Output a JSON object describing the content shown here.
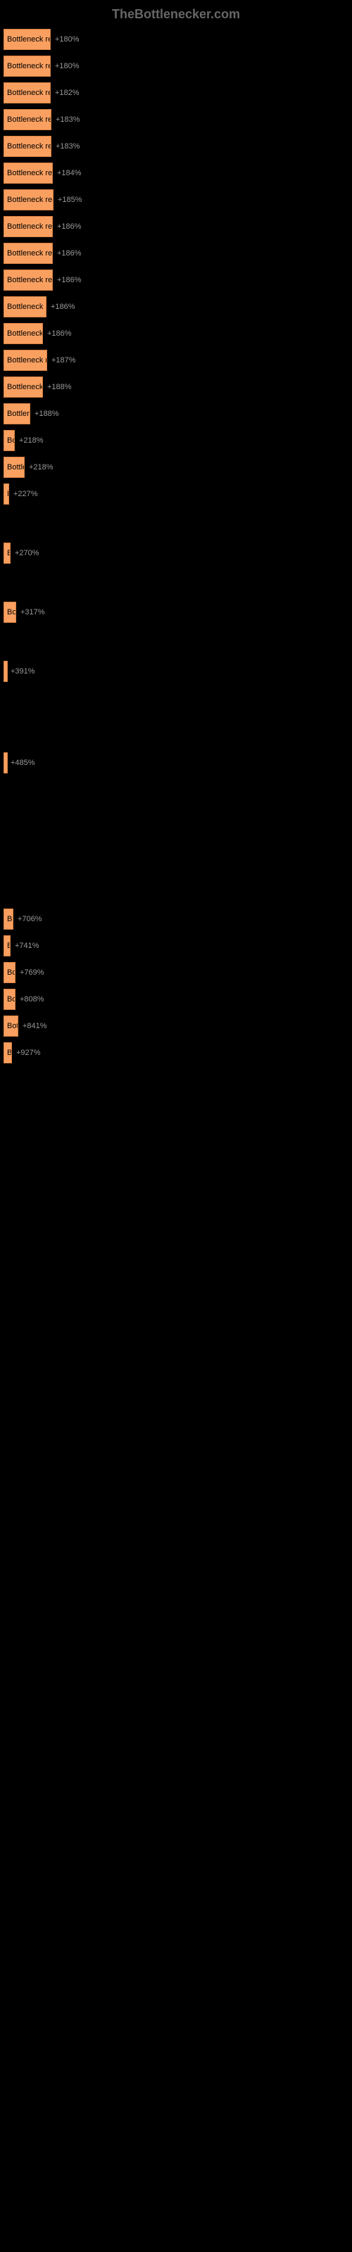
{
  "header": {
    "title": "TheBottlenecker.com"
  },
  "chart": {
    "type": "bar",
    "bar_color": "#f9a061",
    "bar_border_color": "#d88040",
    "background_color": "#000000",
    "text_color": "#000000",
    "percent_color": "#999999",
    "max_width": 490,
    "items": [
      {
        "label": "Bottleneck result",
        "width": 67,
        "percent": "+180%"
      },
      {
        "label": "Bottleneck result",
        "width": 67,
        "percent": "+180%"
      },
      {
        "label": "Bottleneck result",
        "width": 67,
        "percent": "+182%"
      },
      {
        "label": "Bottleneck result",
        "width": 68,
        "percent": "+183%"
      },
      {
        "label": "Bottleneck result",
        "width": 68,
        "percent": "+183%"
      },
      {
        "label": "Bottleneck result",
        "width": 70,
        "percent": "+184%"
      },
      {
        "label": "Bottleneck result",
        "width": 71,
        "percent": "+185%"
      },
      {
        "label": "Bottleneck result",
        "width": 70,
        "percent": "+186%"
      },
      {
        "label": "Bottleneck result",
        "width": 70,
        "percent": "+186%"
      },
      {
        "label": "Bottleneck result",
        "width": 70,
        "percent": "+186%"
      },
      {
        "label": "Bottleneck re",
        "width": 61,
        "percent": "+186%"
      },
      {
        "label": "Bottleneck r",
        "width": 56,
        "percent": "+186%"
      },
      {
        "label": "Bottleneck re",
        "width": 62,
        "percent": "+187%"
      },
      {
        "label": "Bottleneck r",
        "width": 56,
        "percent": "+188%"
      },
      {
        "label": "Bottlene",
        "width": 38,
        "percent": "+188%"
      },
      {
        "label": "Bo",
        "width": 16,
        "percent": "+218%"
      },
      {
        "label": "Bottle",
        "width": 30,
        "percent": "+218%"
      },
      {
        "label": "H",
        "width": 8,
        "percent": "+227%"
      },
      {
        "label": "",
        "width": 0,
        "percent": ""
      },
      {
        "label": "B",
        "width": 10,
        "percent": "+270%"
      },
      {
        "label": "",
        "width": 0,
        "percent": ""
      },
      {
        "label": "Bo",
        "width": 18,
        "percent": "+317%"
      },
      {
        "label": "",
        "width": 0,
        "percent": ""
      },
      {
        "label": "B",
        "width": 4,
        "percent": "+391%"
      },
      {
        "label": "",
        "width": 0,
        "percent": ""
      },
      {
        "label": "",
        "width": 0,
        "percent": ""
      },
      {
        "label": "B",
        "width": 4,
        "percent": "+485%"
      },
      {
        "label": "",
        "width": 0,
        "percent": ""
      },
      {
        "label": "",
        "width": 0,
        "percent": ""
      },
      {
        "label": "",
        "width": 0,
        "percent": ""
      },
      {
        "label": "",
        "width": 0,
        "percent": ""
      },
      {
        "label": "B",
        "width": 14,
        "percent": "+706%"
      },
      {
        "label": "B",
        "width": 10,
        "percent": "+741%"
      },
      {
        "label": "Bo",
        "width": 17,
        "percent": "+769%"
      },
      {
        "label": "Bo",
        "width": 17,
        "percent": "+808%"
      },
      {
        "label": "Bot",
        "width": 21,
        "percent": "+841%"
      },
      {
        "label": "B",
        "width": 12,
        "percent": "+927%"
      }
    ]
  }
}
